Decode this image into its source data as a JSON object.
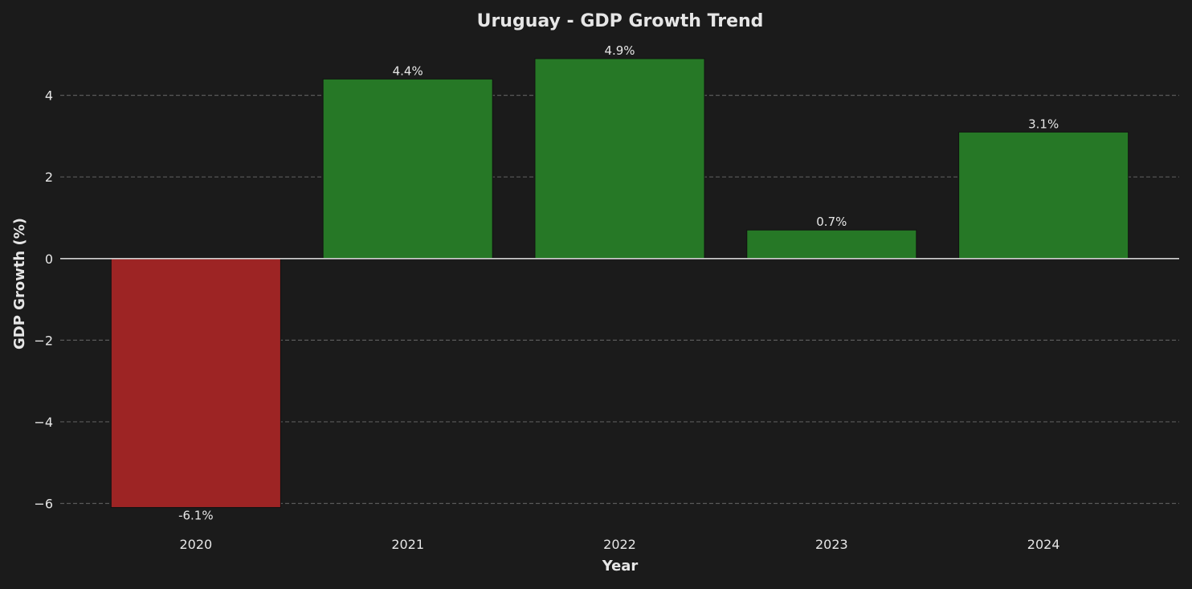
{
  "chart_data": {
    "type": "bar",
    "title": "Uruguay - GDP Growth Trend",
    "xlabel": "Year",
    "ylabel": "GDP Growth (%)",
    "categories": [
      "2020",
      "2021",
      "2022",
      "2023",
      "2024"
    ],
    "values": [
      -6.1,
      4.4,
      4.9,
      0.7,
      3.1
    ],
    "data_labels": [
      "-6.1%",
      "4.4%",
      "4.9%",
      "0.7%",
      "3.1%"
    ],
    "ylim": [
      -6.65,
      5.45
    ],
    "yticks": [
      -6,
      -4,
      -2,
      0,
      2,
      4
    ],
    "ytick_labels": [
      "−6",
      "−4",
      "−2",
      "0",
      "2",
      "4"
    ],
    "grid": "horizontal dashed",
    "colors": {
      "positive": "#267826",
      "negative": "#9d2424",
      "background": "#1b1b1b",
      "text": "#e6e6e6",
      "grid": "#5a5a5a"
    }
  }
}
